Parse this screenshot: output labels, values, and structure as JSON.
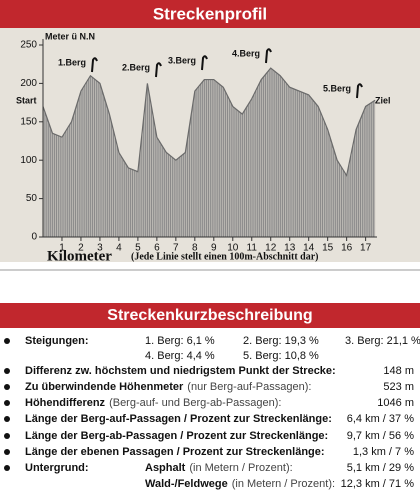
{
  "chart_data": {
    "type": "area",
    "title": "Streckenprofil",
    "y_label": "Meter ü N.N",
    "x_label": "Kilometer",
    "note": "(Jede Linie stellt einen 100m-Abschnitt dar)",
    "start_label": "Start",
    "end_label": "Ziel",
    "annotations": [
      "1.Berg",
      "2.Berg",
      "3.Berg",
      "4.Berg",
      "5.Berg"
    ],
    "x": [
      0,
      0.5,
      1,
      1.5,
      2,
      2.5,
      3,
      3.5,
      4,
      4.5,
      5,
      5.5,
      6,
      6.5,
      7,
      7.5,
      8,
      8.5,
      9,
      9.5,
      10,
      10.5,
      11,
      11.5,
      12,
      12.5,
      13,
      13.5,
      14,
      14.5,
      15,
      15.5,
      16,
      16.5,
      17,
      17.5
    ],
    "values": [
      170,
      135,
      130,
      150,
      190,
      210,
      200,
      160,
      110,
      90,
      85,
      200,
      130,
      110,
      100,
      110,
      190,
      205,
      205,
      195,
      170,
      160,
      180,
      205,
      220,
      210,
      195,
      190,
      185,
      170,
      140,
      100,
      80,
      140,
      170,
      178
    ],
    "color": "#6a6a6a",
    "xlim": [
      0,
      17.6
    ],
    "xticks": [
      1,
      2,
      3,
      4,
      5,
      6,
      7,
      8,
      9,
      10,
      11,
      12,
      13,
      14,
      15,
      16,
      17
    ],
    "ylim": [
      0,
      250
    ],
    "yticks": [
      0,
      50,
      100,
      150,
      200,
      250
    ]
  },
  "description": {
    "title": "Streckenkurzbeschreibung",
    "climbs_label": "Steigungen:",
    "climbs": [
      "1. Berg: 6,1 %",
      "2. Berg: 19,3 %",
      "3. Berg: 21,1 %",
      "4. Berg: 4,4 %",
      "5. Berg: 10,8 %"
    ],
    "rows": [
      {
        "label": "Differenz zw. höchstem und niedrigstem Punkt der Strecke:",
        "value": "148 m"
      },
      {
        "label": "Zu überwindende Höhenmeter",
        "note": "(nur Berg-auf-Passagen):",
        "value": "523 m"
      },
      {
        "label": "Höhendifferenz",
        "note": "(Berg-auf- und Berg-ab-Passagen):",
        "value": "1046 m"
      },
      {
        "label": "Länge der Berg-auf-Passagen / Prozent zur Streckenlänge:",
        "value": "6,4 km / 37 %"
      },
      {
        "label": "Länge der Berg-ab-Passagen / Prozent zur Streckenlänge:",
        "value": "9,7 km / 56 %"
      },
      {
        "label": "Länge der ebenen Passagen / Prozent zur Streckenlänge:",
        "value": "1,3 km / 7 %"
      }
    ],
    "surface_label": "Untergrund:",
    "surfaces": [
      {
        "label": "Asphalt",
        "note": "(in Metern / Prozent):",
        "value": "5,1 km / 29 %"
      },
      {
        "label": "Wald-/Feldwege",
        "note": "(in Metern / Prozent):",
        "value": "12,3 km / 71 %"
      }
    ]
  }
}
